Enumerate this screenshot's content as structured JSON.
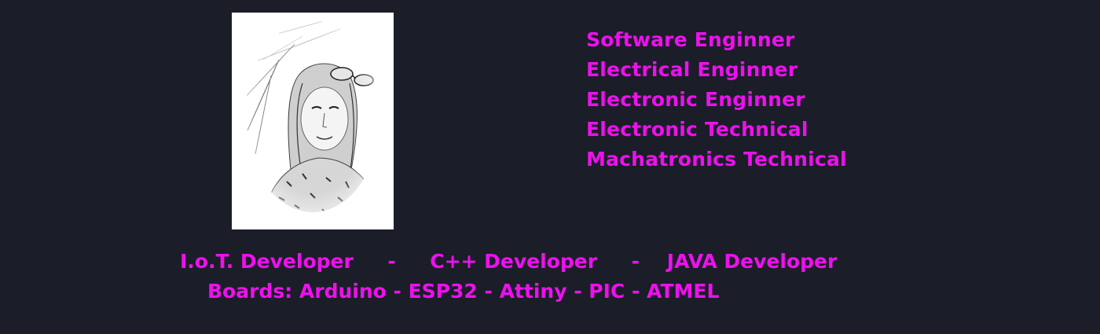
{
  "profile_photo": {
    "description_icon": "portrait-sketch-image"
  },
  "titles": [
    "Software Enginner",
    "Electrical Enginner",
    "Electronic Enginner",
    "Electronic Technical",
    "Machatronics Technical"
  ],
  "skills_line": "I.o.T. Developer     -     C++ Developer     -    JAVA Developer",
  "boards_line": "Boards: Arduino - ESP32 - Attiny - PIC - ATMEL",
  "colors": {
    "background": "#1b1d29",
    "text": "#ee10ee"
  }
}
